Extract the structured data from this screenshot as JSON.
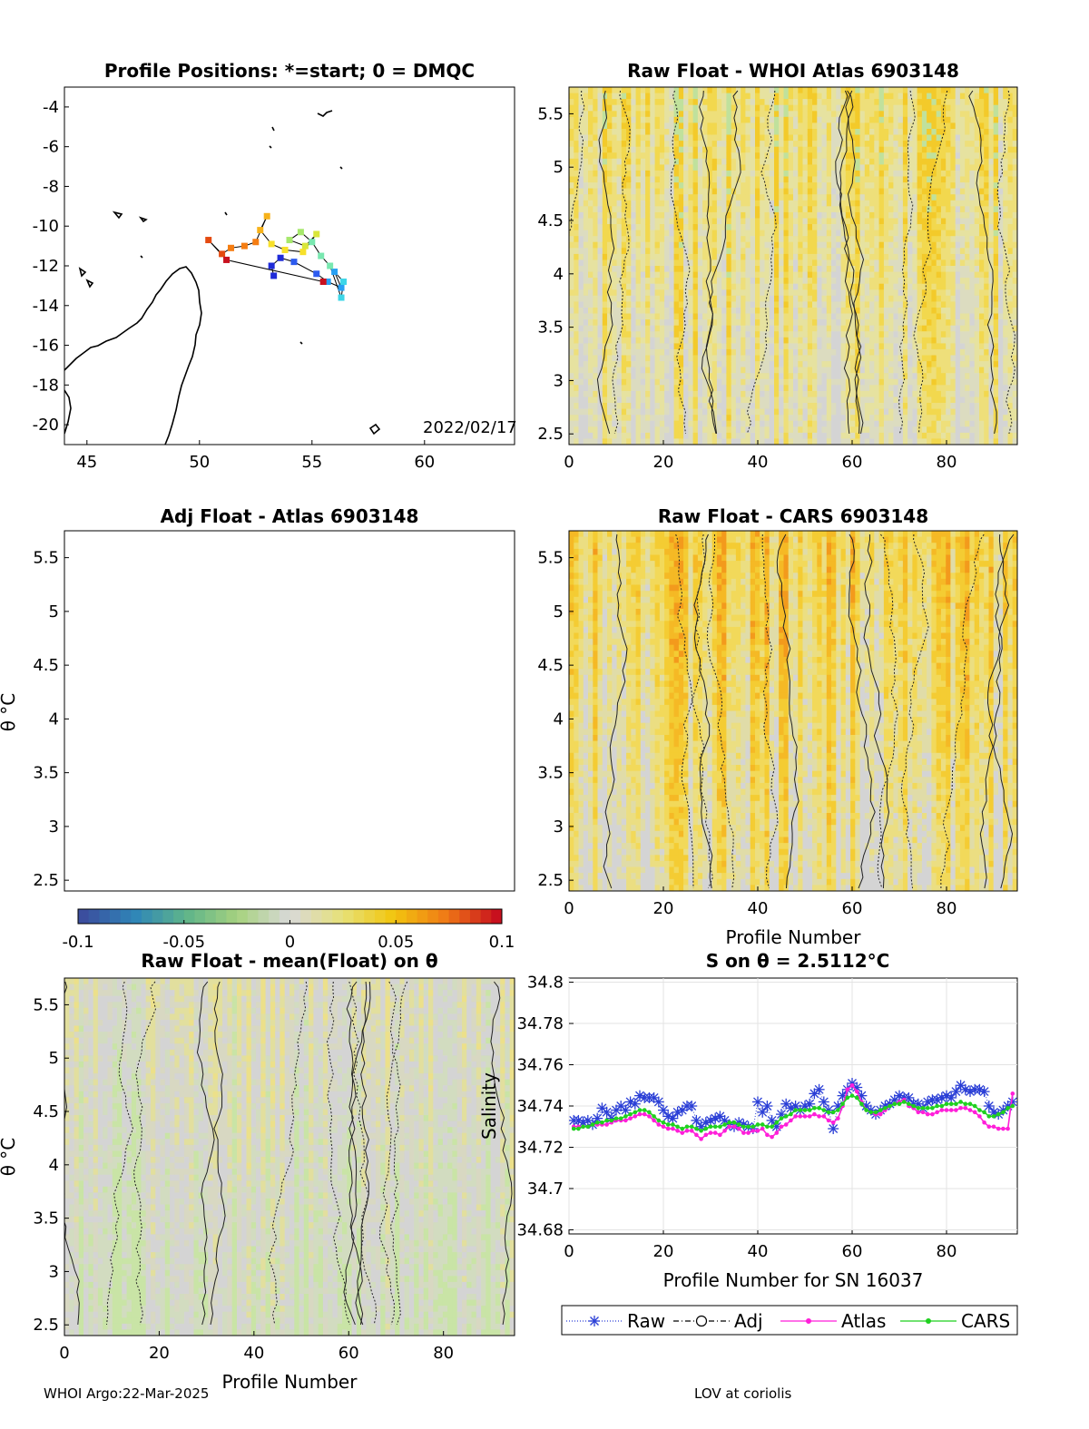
{
  "footer": {
    "left": "WHOI Argo:22-Mar-2025",
    "right": "LOV at coriolis"
  },
  "colorbar": {
    "ticks": [
      "-0.1",
      "-0.05",
      "0",
      "0.05",
      "0.1"
    ],
    "colors": [
      "#3b4e9e",
      "#2f86b8",
      "#5fb58a",
      "#a7d27f",
      "#d9d9d9",
      "#e6e17a",
      "#f2c60f",
      "#f07b16",
      "#c8101e"
    ]
  },
  "chart_data": [
    {
      "type": "scatter",
      "panel": "map",
      "title": "Profile Positions: *=start; 0 = DMQC",
      "annotation": "2022/02/17",
      "xlim": [
        44,
        64
      ],
      "ylim": [
        -21,
        -3
      ],
      "xticks": [
        "45",
        "50",
        "55",
        "60"
      ],
      "yticks": [
        "-4",
        "-6",
        "-8",
        "-10",
        "-12",
        "-14",
        "-16",
        "-18",
        "-20"
      ],
      "track": [
        [
          53.3,
          -12.5
        ],
        [
          53.2,
          -12.0
        ],
        [
          53.6,
          -11.6
        ],
        [
          54.2,
          -11.8
        ],
        [
          55.2,
          -12.4
        ],
        [
          55.7,
          -12.8
        ],
        [
          56.3,
          -13.1
        ],
        [
          56.0,
          -12.3
        ],
        [
          56.4,
          -12.8
        ],
        [
          56.3,
          -13.6
        ],
        [
          55.8,
          -12.0
        ],
        [
          55.4,
          -11.5
        ],
        [
          55.0,
          -10.8
        ],
        [
          54.5,
          -10.3
        ],
        [
          54.0,
          -10.7
        ],
        [
          54.7,
          -11.0
        ],
        [
          55.2,
          -10.4
        ],
        [
          54.6,
          -11.3
        ],
        [
          53.8,
          -11.2
        ],
        [
          53.2,
          -10.9
        ],
        [
          52.7,
          -10.2
        ],
        [
          53.0,
          -9.5
        ],
        [
          52.5,
          -10.8
        ],
        [
          52.0,
          -11.0
        ],
        [
          51.4,
          -11.1
        ],
        [
          51.0,
          -11.4
        ],
        [
          50.4,
          -10.7
        ],
        [
          51.2,
          -11.7
        ],
        [
          55.5,
          -12.8
        ]
      ]
    },
    {
      "type": "heatmap",
      "panel": "raw-atlas",
      "title": "Raw Float - WHOI Atlas  6903148",
      "xlim": [
        0,
        95
      ],
      "ylim": [
        2.4,
        5.75
      ],
      "xticks": [
        "0",
        "20",
        "40",
        "60",
        "80"
      ],
      "yticks": [
        "2.5",
        "3",
        "3.5",
        "4",
        "4.5",
        "5",
        "5.5"
      ],
      "xlabel": "",
      "ylabel": ""
    },
    {
      "type": "heatmap",
      "panel": "adj-atlas",
      "title": "Adj Float - Atlas  6903148",
      "xlim": [
        0,
        95
      ],
      "ylim": [
        2.4,
        5.75
      ],
      "xticks": [],
      "yticks": [
        "2.5",
        "3",
        "3.5",
        "4",
        "4.5",
        "5",
        "5.5"
      ],
      "ylabel": "θ °C"
    },
    {
      "type": "heatmap",
      "panel": "raw-cars",
      "title": "Raw Float - CARS  6903148",
      "xlim": [
        0,
        95
      ],
      "ylim": [
        2.4,
        5.75
      ],
      "xticks": [
        "0",
        "20",
        "40",
        "60",
        "80"
      ],
      "yticks": [
        "2.5",
        "3",
        "3.5",
        "4",
        "4.5",
        "5",
        "5.5"
      ],
      "xlabel": "Profile Number"
    },
    {
      "type": "heatmap",
      "panel": "raw-mean",
      "title": "Raw Float - mean(Float) on θ",
      "xlim": [
        0,
        95
      ],
      "ylim": [
        2.4,
        5.75
      ],
      "xticks": [
        "0",
        "20",
        "40",
        "60",
        "80"
      ],
      "yticks": [
        "2.5",
        "3",
        "3.5",
        "4",
        "4.5",
        "5",
        "5.5"
      ],
      "xlabel": "Profile Number",
      "ylabel": "θ °C"
    },
    {
      "type": "line",
      "panel": "salinity",
      "title": "S on θ = 2.5112°C",
      "xlabel": "Profile Number for SN 16037",
      "ylabel": "Salinity",
      "xlim": [
        0,
        95
      ],
      "ylim": [
        34.678,
        34.802
      ],
      "xticks": [
        "0",
        "20",
        "40",
        "60",
        "80"
      ],
      "yticks": [
        "34.68",
        "34.7",
        "34.72",
        "34.74",
        "34.76",
        "34.78",
        "34.8"
      ],
      "legend": [
        "Raw",
        "Adj",
        "Atlas",
        "CARS"
      ],
      "x": [
        1,
        2,
        3,
        4,
        5,
        6,
        7,
        8,
        9,
        10,
        11,
        12,
        13,
        14,
        15,
        16,
        17,
        18,
        19,
        20,
        21,
        22,
        23,
        24,
        25,
        26,
        27,
        28,
        29,
        30,
        31,
        32,
        33,
        34,
        35,
        36,
        37,
        38,
        39,
        40,
        41,
        42,
        43,
        44,
        45,
        46,
        47,
        48,
        49,
        50,
        51,
        52,
        53,
        54,
        55,
        56,
        57,
        58,
        59,
        60,
        61,
        62,
        63,
        64,
        65,
        66,
        67,
        68,
        69,
        70,
        71,
        72,
        73,
        74,
        75,
        76,
        77,
        78,
        79,
        80,
        81,
        82,
        83,
        84,
        85,
        86,
        87,
        88,
        89,
        90,
        91,
        92,
        93,
        94
      ],
      "series": [
        {
          "name": "Raw",
          "color": "#2b3fd6",
          "values": [
            34.733,
            34.733,
            34.732,
            34.733,
            34.731,
            34.734,
            34.739,
            34.737,
            34.734,
            34.738,
            34.74,
            34.738,
            34.742,
            34.741,
            34.745,
            34.744,
            34.744,
            34.744,
            34.742,
            34.738,
            34.735,
            34.734,
            34.737,
            34.738,
            34.74,
            34.74,
            34.733,
            34.73,
            34.732,
            34.733,
            34.734,
            34.735,
            34.733,
            34.731,
            34.73,
            34.732,
            34.731,
            34.73,
            34.729,
            34.742,
            34.737,
            34.74,
            34.733,
            34.73,
            34.736,
            34.741,
            34.739,
            34.74,
            34.738,
            34.74,
            34.741,
            34.746,
            34.748,
            34.742,
            34.738,
            34.729,
            34.74,
            34.745,
            34.748,
            34.751,
            34.749,
            34.745,
            34.74,
            34.738,
            34.736,
            34.738,
            34.74,
            34.741,
            34.743,
            34.745,
            34.744,
            34.744,
            34.741,
            34.741,
            34.739,
            34.742,
            34.743,
            34.743,
            34.744,
            34.745,
            34.744,
            34.747,
            34.75,
            34.748,
            34.747,
            34.748,
            34.748,
            34.747,
            34.74,
            34.737,
            34.736,
            34.738,
            34.74,
            34.742
          ]
        },
        {
          "name": "Atlas",
          "color": "#ff1fd9",
          "values": [
            34.73,
            34.73,
            34.73,
            34.73,
            34.731,
            34.731,
            34.731,
            34.731,
            34.732,
            34.733,
            34.733,
            34.733,
            34.734,
            34.735,
            34.736,
            34.736,
            34.735,
            34.733,
            34.731,
            34.73,
            34.729,
            34.729,
            34.728,
            34.727,
            34.728,
            34.728,
            34.726,
            34.724,
            34.726,
            34.727,
            34.727,
            34.726,
            34.728,
            34.73,
            34.73,
            34.729,
            34.727,
            34.727,
            34.728,
            34.728,
            34.729,
            34.726,
            34.725,
            34.727,
            34.73,
            34.731,
            34.733,
            34.735,
            34.735,
            34.735,
            34.735,
            34.736,
            34.735,
            34.735,
            34.733,
            34.732,
            34.734,
            34.74,
            34.748,
            34.75,
            34.747,
            34.742,
            34.738,
            34.737,
            34.736,
            34.736,
            34.738,
            34.74,
            34.741,
            34.742,
            34.743,
            34.74,
            34.739,
            34.737,
            34.737,
            34.736,
            34.736,
            34.737,
            34.738,
            34.738,
            34.738,
            34.738,
            34.739,
            34.739,
            34.738,
            34.737,
            34.735,
            34.732,
            34.73,
            34.73,
            34.729,
            34.729,
            34.729,
            34.746
          ]
        },
        {
          "name": "CARS",
          "color": "#1fd11f",
          "values": [
            34.729,
            34.729,
            34.73,
            34.73,
            34.731,
            34.732,
            34.732,
            34.733,
            34.733,
            34.734,
            34.734,
            34.735,
            34.736,
            34.737,
            34.738,
            34.738,
            34.737,
            34.735,
            34.733,
            34.732,
            34.731,
            34.731,
            34.73,
            34.729,
            34.73,
            34.73,
            34.729,
            34.728,
            34.729,
            34.73,
            34.73,
            34.73,
            34.731,
            34.732,
            34.732,
            34.731,
            34.73,
            34.73,
            34.73,
            34.731,
            34.731,
            34.73,
            34.73,
            34.732,
            34.734,
            34.735,
            34.736,
            34.738,
            34.738,
            34.738,
            34.738,
            34.739,
            34.739,
            34.738,
            34.737,
            34.737,
            34.738,
            34.741,
            34.744,
            34.745,
            34.744,
            34.741,
            34.738,
            34.737,
            34.737,
            34.738,
            34.739,
            34.74,
            34.741,
            34.741,
            34.742,
            34.741,
            34.74,
            34.739,
            34.739,
            34.739,
            34.739,
            34.74,
            34.74,
            34.741,
            34.741,
            34.741,
            34.742,
            34.741,
            34.741,
            34.74,
            34.738,
            34.737,
            34.735,
            34.735,
            34.736,
            34.737,
            34.739,
            34.74
          ]
        }
      ]
    }
  ]
}
